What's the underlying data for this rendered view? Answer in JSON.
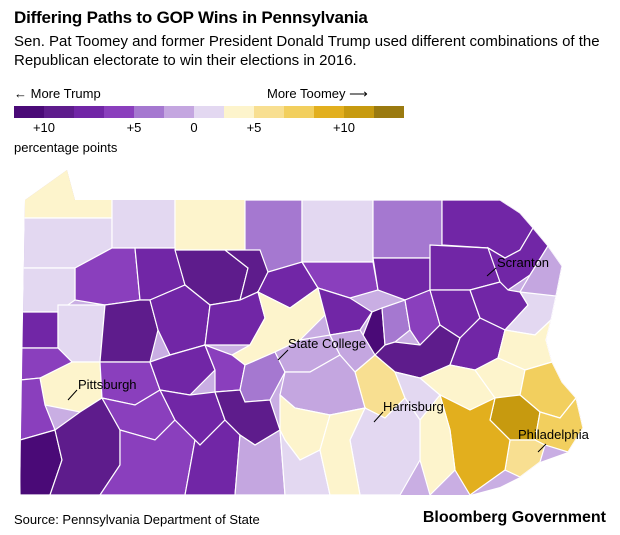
{
  "title": "Differing Paths to GOP Wins in Pennsylvania",
  "subtitle": "Sen. Pat Toomey and former President Donald Trump used different combinations of the Republican electorate to win their elections in 2016.",
  "legend": {
    "left_label": "← More Trump",
    "right_label": "More Toomey ⟶",
    "unit": "percentage points",
    "ticks": [
      {
        "label": "+10",
        "pos": 1
      },
      {
        "label": "+5",
        "pos": 4
      },
      {
        "label": "0",
        "pos": 6
      },
      {
        "label": "+5",
        "pos": 8
      },
      {
        "label": "+10",
        "pos": 11
      }
    ],
    "colors": [
      "#4a0a77",
      "#5e1c8c",
      "#7126a6",
      "#8a3fbd",
      "#a578d0",
      "#c4a6e0",
      "#e3d8f1",
      "#fdf4cc",
      "#f8df91",
      "#f2cf5e",
      "#e2af1e",
      "#c79a0f",
      "#9a7a10"
    ]
  },
  "cities": [
    {
      "name": "Scranton"
    },
    {
      "name": "State College"
    },
    {
      "name": "Pittsburgh"
    },
    {
      "name": "Harrisburg"
    },
    {
      "name": "Philadelphia"
    }
  ],
  "footer": {
    "source": "Source: Pennsylvania Department of State",
    "brand": "Bloomberg Government"
  }
}
